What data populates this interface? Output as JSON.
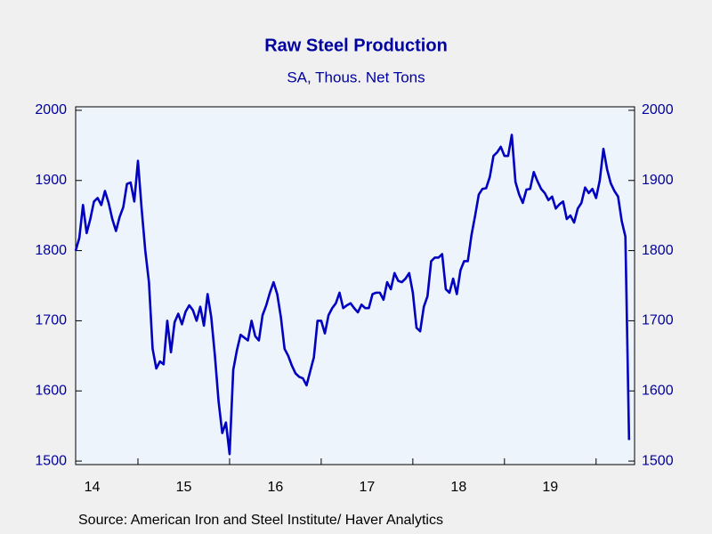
{
  "chart_data": {
    "type": "line",
    "title": "Raw Steel Production",
    "subtitle": "SA, Thous. Net Tons",
    "source": "Source:  American Iron and Steel Institute/ Haver Analytics",
    "x": [
      14.32,
      14.36,
      14.4,
      14.44,
      14.48,
      14.52,
      14.56,
      14.6,
      14.64,
      14.68,
      14.72,
      14.76,
      14.8,
      14.84,
      14.88,
      14.92,
      14.96,
      15,
      15.04,
      15.08,
      15.12,
      15.16,
      15.2,
      15.24,
      15.28,
      15.32,
      15.36,
      15.4,
      15.44,
      15.48,
      15.52,
      15.56,
      15.6,
      15.64,
      15.68,
      15.72,
      15.76,
      15.8,
      15.84,
      15.88,
      15.92,
      15.96,
      16,
      16.04,
      16.08,
      16.12,
      16.16,
      16.2,
      16.24,
      16.28,
      16.32,
      16.36,
      16.4,
      16.44,
      16.48,
      16.52,
      16.56,
      16.6,
      16.64,
      16.68,
      16.72,
      16.76,
      16.8,
      16.84,
      16.88,
      16.92,
      16.96,
      17,
      17.04,
      17.08,
      17.12,
      17.16,
      17.2,
      17.24,
      17.28,
      17.32,
      17.36,
      17.4,
      17.44,
      17.48,
      17.52,
      17.56,
      17.6,
      17.64,
      17.68,
      17.72,
      17.76,
      17.8,
      17.84,
      17.88,
      17.92,
      17.96,
      18,
      18.04,
      18.08,
      18.12,
      18.16,
      18.2,
      18.24,
      18.28,
      18.32,
      18.36,
      18.4,
      18.44,
      18.48,
      18.52,
      18.56,
      18.6,
      18.64,
      18.68,
      18.72,
      18.76,
      18.8,
      18.84,
      18.88,
      18.92,
      18.96,
      19,
      19.04,
      19.08,
      19.12,
      19.16,
      19.2,
      19.24,
      19.28,
      19.32,
      19.36,
      19.4,
      19.44,
      19.48,
      19.52,
      19.56,
      19.6,
      19.64,
      19.68,
      19.72,
      19.76,
      19.8,
      19.84,
      19.88,
      19.92,
      19.96,
      20,
      20.04,
      20.08,
      20.12,
      20.16,
      20.2,
      20.24,
      20.28,
      20.32,
      20.36
    ],
    "series": [
      {
        "name": "Raw Steel Production",
        "color": "#0000c0",
        "values": [
          1800,
          1818,
          1865,
          1825,
          1845,
          1870,
          1875,
          1865,
          1885,
          1868,
          1845,
          1828,
          1848,
          1862,
          1895,
          1897,
          1870,
          1928,
          1860,
          1800,
          1755,
          1660,
          1632,
          1642,
          1638,
          1700,
          1655,
          1698,
          1710,
          1695,
          1713,
          1722,
          1715,
          1700,
          1720,
          1693,
          1738,
          1705,
          1650,
          1585,
          1540,
          1555,
          1510,
          1630,
          1658,
          1680,
          1676,
          1672,
          1700,
          1678,
          1672,
          1708,
          1722,
          1740,
          1755,
          1738,
          1705,
          1660,
          1650,
          1636,
          1625,
          1620,
          1618,
          1608,
          1628,
          1648,
          1700,
          1700,
          1682,
          1708,
          1718,
          1725,
          1740,
          1718,
          1722,
          1725,
          1718,
          1712,
          1723,
          1718,
          1718,
          1738,
          1740,
          1740,
          1730,
          1755,
          1745,
          1768,
          1757,
          1755,
          1760,
          1768,
          1740,
          1690,
          1685,
          1720,
          1735,
          1785,
          1790,
          1790,
          1795,
          1745,
          1740,
          1760,
          1738,
          1772,
          1785,
          1785,
          1822,
          1850,
          1880,
          1888,
          1889,
          1905,
          1935,
          1940,
          1948,
          1935,
          1935,
          1965,
          1898,
          1880,
          1868,
          1887,
          1888,
          1912,
          1899,
          1888,
          1882,
          1872,
          1877,
          1860,
          1866,
          1870,
          1845,
          1850,
          1840,
          1860,
          1868,
          1890,
          1882,
          1888,
          1875,
          1900,
          1945,
          1916,
          1896,
          1885,
          1877,
          1842,
          1820,
          1530
        ]
      }
    ],
    "xlim": [
      14.32,
      20.42
    ],
    "xticks": [
      {
        "value": 14.5,
        "label": "14"
      },
      {
        "value": 15.5,
        "label": "15"
      },
      {
        "value": 16.5,
        "label": "16"
      },
      {
        "value": 17.5,
        "label": "17"
      },
      {
        "value": 18.5,
        "label": "18"
      },
      {
        "value": 19.5,
        "label": "19"
      }
    ],
    "x_boundaries": [
      15,
      16,
      17,
      18,
      19,
      20
    ],
    "ylim": [
      1495,
      2005
    ],
    "yticks": [
      1500,
      1600,
      1700,
      1800,
      1900,
      2000
    ],
    "y2lim": [
      1495,
      2005
    ],
    "y2ticks": [
      1500,
      1600,
      1700,
      1800,
      1900,
      2000
    ],
    "grid": false
  }
}
